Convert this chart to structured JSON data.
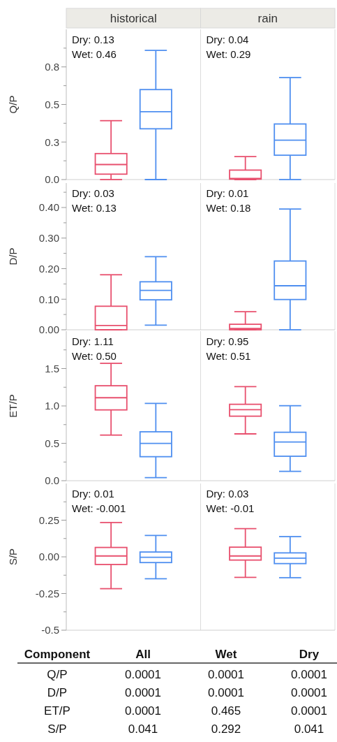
{
  "chart_data": [
    {
      "type": "box",
      "ylabel": "Q/P",
      "categories": [
        "historical",
        "rain"
      ],
      "ylim": [
        0,
        1
      ],
      "yticks": [
        {
          "value": 0,
          "label": "0.0"
        },
        {
          "value": 0.125,
          "label": null
        },
        {
          "value": 0.25,
          "label": "0.3"
        },
        {
          "value": 0.375,
          "label": null
        },
        {
          "value": 0.5,
          "label": "0.5"
        },
        {
          "value": 0.625,
          "label": null
        },
        {
          "value": 0.75,
          "label": "0.8"
        },
        {
          "value": 0.875,
          "label": null
        }
      ],
      "annotations": [
        "Dry: 0.13",
        "Wet: 0.46",
        "Dry: 0.04",
        "Wet: 0.29"
      ],
      "series": [
        {
          "color": "#e8506e",
          "boxes": [
            {
              "low": 0,
              "q1": 0.036,
              "median": 0.1,
              "q3": 0.173,
              "high": 0.392
            },
            {
              "low": 0,
              "q1": 0.003,
              "median": 0.008,
              "q3": 0.063,
              "high": 0.153
            }
          ]
        },
        {
          "color": "#4f8ff0",
          "boxes": [
            {
              "low": 0,
              "q1": 0.338,
              "median": 0.452,
              "q3": 0.599,
              "high": 0.86
            },
            {
              "low": 0,
              "q1": 0.162,
              "median": 0.262,
              "q3": 0.37,
              "high": 0.679
            }
          ]
        }
      ]
    },
    {
      "type": "box",
      "ylabel": "D/P",
      "categories": [
        null,
        null
      ],
      "ylim": [
        0,
        0.48
      ],
      "yticks": [
        {
          "value": 0,
          "label": "0.00"
        },
        {
          "value": 0.05,
          "label": null
        },
        {
          "value": 0.1,
          "label": "0.10"
        },
        {
          "value": 0.15,
          "label": null
        },
        {
          "value": 0.2,
          "label": "0.20"
        },
        {
          "value": 0.25,
          "label": null
        },
        {
          "value": 0.3,
          "label": "0.30"
        },
        {
          "value": 0.35,
          "label": null
        },
        {
          "value": 0.4,
          "label": "0.40"
        },
        {
          "value": 0.45,
          "label": null
        }
      ],
      "tick_labels": "y",
      "annotations": [
        "Dry: 0.03",
        "Wet: 0.13",
        "Dry: 0.01",
        "Wet: 0.18"
      ],
      "series": [
        {
          "color": "#e8506e",
          "boxes": [
            {
              "low": 0,
              "q1": 0,
              "median": 0.014,
              "q3": 0.077,
              "high": 0.18
            },
            {
              "low": 0,
              "q1": 0,
              "median": 0.004,
              "q3": 0.018,
              "high": 0.059
            }
          ]
        },
        {
          "color": "#4f8ff0",
          "boxes": [
            {
              "low": 0.015,
              "q1": 0.098,
              "median": 0.129,
              "q3": 0.157,
              "high": 0.239
            },
            {
              "low": 0,
              "q1": 0.099,
              "median": 0.144,
              "q3": 0.225,
              "high": 0.395
            }
          ]
        }
      ]
    },
    {
      "type": "box",
      "ylabel": "ET/P",
      "categories": [
        null,
        null
      ],
      "ylim": [
        0,
        2
      ],
      "yticks": [
        {
          "value": 0,
          "label": "0.0"
        },
        {
          "value": 0.25,
          "label": null
        },
        0.5,
        {
          "value": 0.75,
          "label": null
        },
        {
          "value": 1,
          "label": "1.0"
        },
        {
          "value": 1.25,
          "label": null
        },
        1.5,
        {
          "value": 1.75,
          "label": null
        }
      ],
      "tick_labels": "y",
      "annotations": [
        "Dry: 1.11",
        "Wet: 0.50",
        "Dry: 0.95",
        "Wet: 0.51"
      ],
      "series": [
        {
          "color": "#e8506e",
          "boxes": [
            {
              "low": 0.61,
              "q1": 0.947,
              "median": 1.11,
              "q3": 1.27,
              "high": 1.57
            },
            {
              "low": 0.626,
              "q1": 0.863,
              "median": 0.95,
              "q3": 1.022,
              "high": 1.259
            }
          ]
        },
        {
          "color": "#4f8ff0",
          "boxes": [
            {
              "low": 0.04,
              "q1": 0.321,
              "median": 0.498,
              "q3": 0.654,
              "high": 1.034
            },
            {
              "low": 0.125,
              "q1": 0.327,
              "median": 0.517,
              "q3": 0.648,
              "high": 1.003
            }
          ]
        }
      ]
    },
    {
      "type": "box",
      "ylabel": "S/P",
      "categories": [
        null,
        null
      ],
      "ylim": [
        -0.5,
        0.5
      ],
      "yticks": [
        -0.5,
        {
          "value": -0.375,
          "label": null
        },
        -0.25,
        {
          "value": -0.125,
          "label": null
        },
        {
          "value": 0,
          "label": "0.00"
        },
        {
          "value": 0.125,
          "label": null
        },
        0.25,
        {
          "value": 0.375,
          "label": null
        }
      ],
      "tick_labels": "y",
      "annotations": [
        "Dry: 0.01",
        "Wet: -0.001",
        "Dry: 0.03",
        "Wet: -0.01"
      ],
      "series": [
        {
          "color": "#e8506e",
          "boxes": [
            {
              "low": -0.217,
              "q1": -0.052,
              "median": 0.006,
              "q3": 0.064,
              "high": 0.234
            },
            {
              "low": -0.14,
              "q1": -0.022,
              "median": 0.006,
              "q3": 0.066,
              "high": 0.192
            }
          ]
        },
        {
          "color": "#4f8ff0",
          "boxes": [
            {
              "low": -0.149,
              "q1": -0.039,
              "median": -0.003,
              "q3": 0.033,
              "high": 0.146
            },
            {
              "low": -0.142,
              "q1": -0.046,
              "median": -0.009,
              "q3": 0.027,
              "high": 0.138
            }
          ]
        }
      ]
    },
    {
      "type": "other",
      "ylabel": "Component",
      "categories": [
        "Q/P",
        "D/P",
        "ET/P",
        "S/P"
      ],
      "data_labels": true,
      "series": [
        {
          "name": "All",
          "values": [
            0.0001,
            0.0001,
            0.0001,
            0.041
          ]
        },
        {
          "name": "Wet",
          "values": [
            0.0001,
            0.0001,
            0.465,
            0.292
          ]
        },
        {
          "name": "Dry",
          "values": [
            0.0001,
            0.0001,
            0.0001,
            0.041
          ]
        }
      ]
    }
  ]
}
